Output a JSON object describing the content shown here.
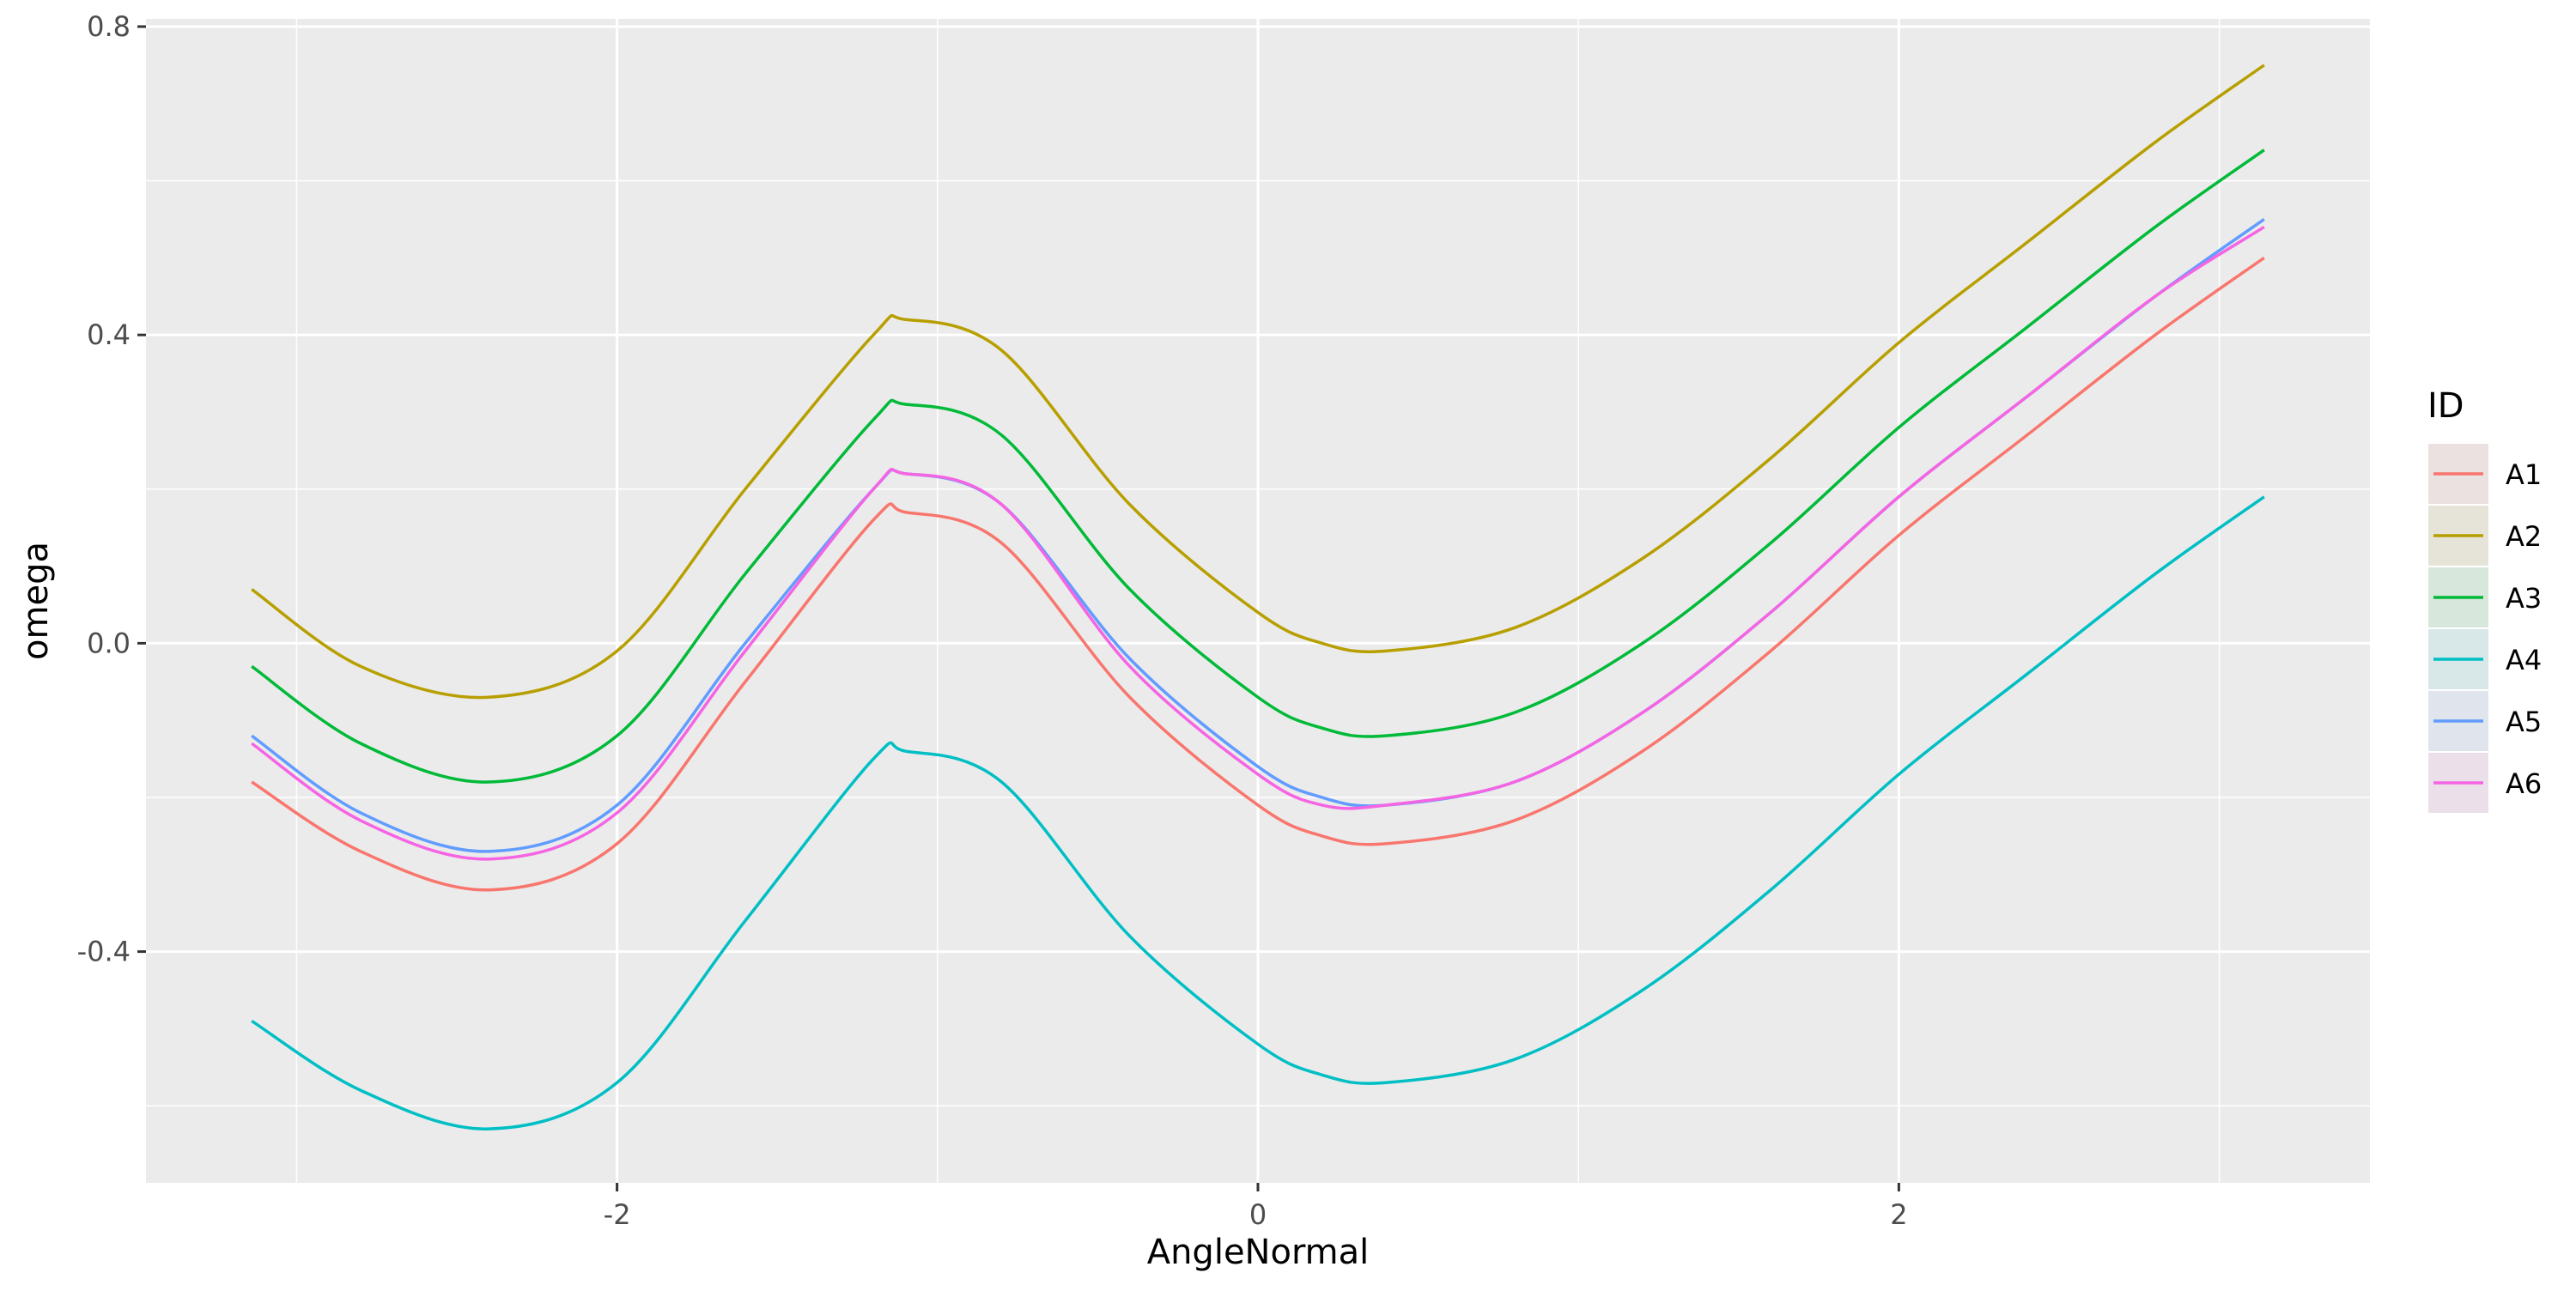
{
  "chart_data": {
    "type": "line",
    "title": "",
    "xlabel": "AngleNormal",
    "ylabel": "omega",
    "xlim": [
      -3.47,
      3.47
    ],
    "ylim": [
      -0.7,
      0.81
    ],
    "x_ticks": [
      {
        "value": -2,
        "label": "-2"
      },
      {
        "value": 0,
        "label": "0"
      },
      {
        "value": 2,
        "label": "2"
      }
    ],
    "y_ticks": [
      {
        "value": -0.4,
        "label": "-0.4"
      },
      {
        "value": 0.0,
        "label": "0.0"
      },
      {
        "value": 0.4,
        "label": "0.4"
      },
      {
        "value": 0.8,
        "label": "0.8"
      }
    ],
    "x_minor_ticks": [
      -3,
      -1,
      1,
      3
    ],
    "y_minor_ticks": [
      -0.6,
      -0.2,
      0.2,
      0.6
    ],
    "grid": true,
    "legend": {
      "title": "ID",
      "position": "right"
    },
    "x": [
      -3.14,
      -2.8,
      -2.4,
      -2.0,
      -1.6,
      -1.2,
      -1.1,
      -0.8,
      -0.4,
      0.0,
      0.2,
      0.4,
      0.8,
      1.2,
      1.6,
      2.0,
      2.4,
      2.8,
      3.14
    ],
    "series": [
      {
        "name": "A1",
        "color": "#F8766D",
        "values": [
          -0.18,
          -0.27,
          -0.32,
          -0.26,
          -0.05,
          0.16,
          0.17,
          0.13,
          -0.07,
          -0.21,
          -0.25,
          -0.26,
          -0.23,
          -0.14,
          -0.01,
          0.14,
          0.27,
          0.4,
          0.5
        ]
      },
      {
        "name": "A2",
        "color": "#B79F00",
        "values": [
          0.07,
          -0.03,
          -0.07,
          -0.01,
          0.2,
          0.4,
          0.42,
          0.38,
          0.18,
          0.04,
          0.0,
          -0.01,
          0.02,
          0.11,
          0.24,
          0.39,
          0.52,
          0.65,
          0.75
        ]
      },
      {
        "name": "A3",
        "color": "#00BA38",
        "values": [
          -0.03,
          -0.13,
          -0.18,
          -0.12,
          0.09,
          0.29,
          0.31,
          0.27,
          0.07,
          -0.07,
          -0.11,
          -0.12,
          -0.09,
          0.0,
          0.13,
          0.28,
          0.41,
          0.54,
          0.64
        ]
      },
      {
        "name": "A4",
        "color": "#00BFC4",
        "values": [
          -0.49,
          -0.58,
          -0.63,
          -0.57,
          -0.36,
          -0.15,
          -0.14,
          -0.18,
          -0.38,
          -0.52,
          -0.56,
          -0.57,
          -0.54,
          -0.45,
          -0.32,
          -0.17,
          -0.04,
          0.09,
          0.19
        ]
      },
      {
        "name": "A5",
        "color": "#619CFF",
        "values": [
          -0.12,
          -0.22,
          -0.27,
          -0.21,
          0.0,
          0.2,
          0.22,
          0.18,
          -0.02,
          -0.16,
          -0.2,
          -0.21,
          -0.18,
          -0.09,
          0.04,
          0.19,
          0.32,
          0.45,
          0.55
        ]
      },
      {
        "name": "A6",
        "color": "#F564E3",
        "values": [
          -0.13,
          -0.23,
          -0.28,
          -0.22,
          -0.01,
          0.2,
          0.22,
          0.18,
          -0.03,
          -0.17,
          -0.21,
          -0.21,
          -0.18,
          -0.09,
          0.04,
          0.19,
          0.32,
          0.45,
          0.54
        ]
      }
    ]
  }
}
